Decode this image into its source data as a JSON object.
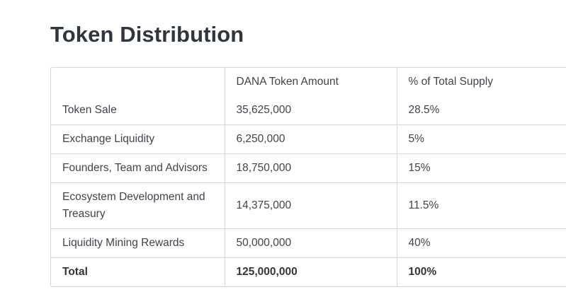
{
  "page": {
    "title": "Token Distribution"
  },
  "table": {
    "headers": [
      "",
      "DANA Token Amount",
      "% of Total Supply"
    ],
    "rows": [
      {
        "label": "Token Sale",
        "amount": "35,625,000",
        "percent": "28.5%"
      },
      {
        "label": "Exchange Liquidity",
        "amount": "6,250,000",
        "percent": "5%"
      },
      {
        "label": "Founders, Team and Advisors",
        "amount": "18,750,000",
        "percent": "15%"
      },
      {
        "label": "Ecosystem Development and Treasury",
        "amount": "14,375,000",
        "percent": "11.5%"
      },
      {
        "label": "Liquidity Mining Rewards",
        "amount": "50,000,000",
        "percent": "40%"
      }
    ],
    "total": {
      "label": "Total",
      "amount": "125,000,000",
      "percent": "100%"
    }
  }
}
